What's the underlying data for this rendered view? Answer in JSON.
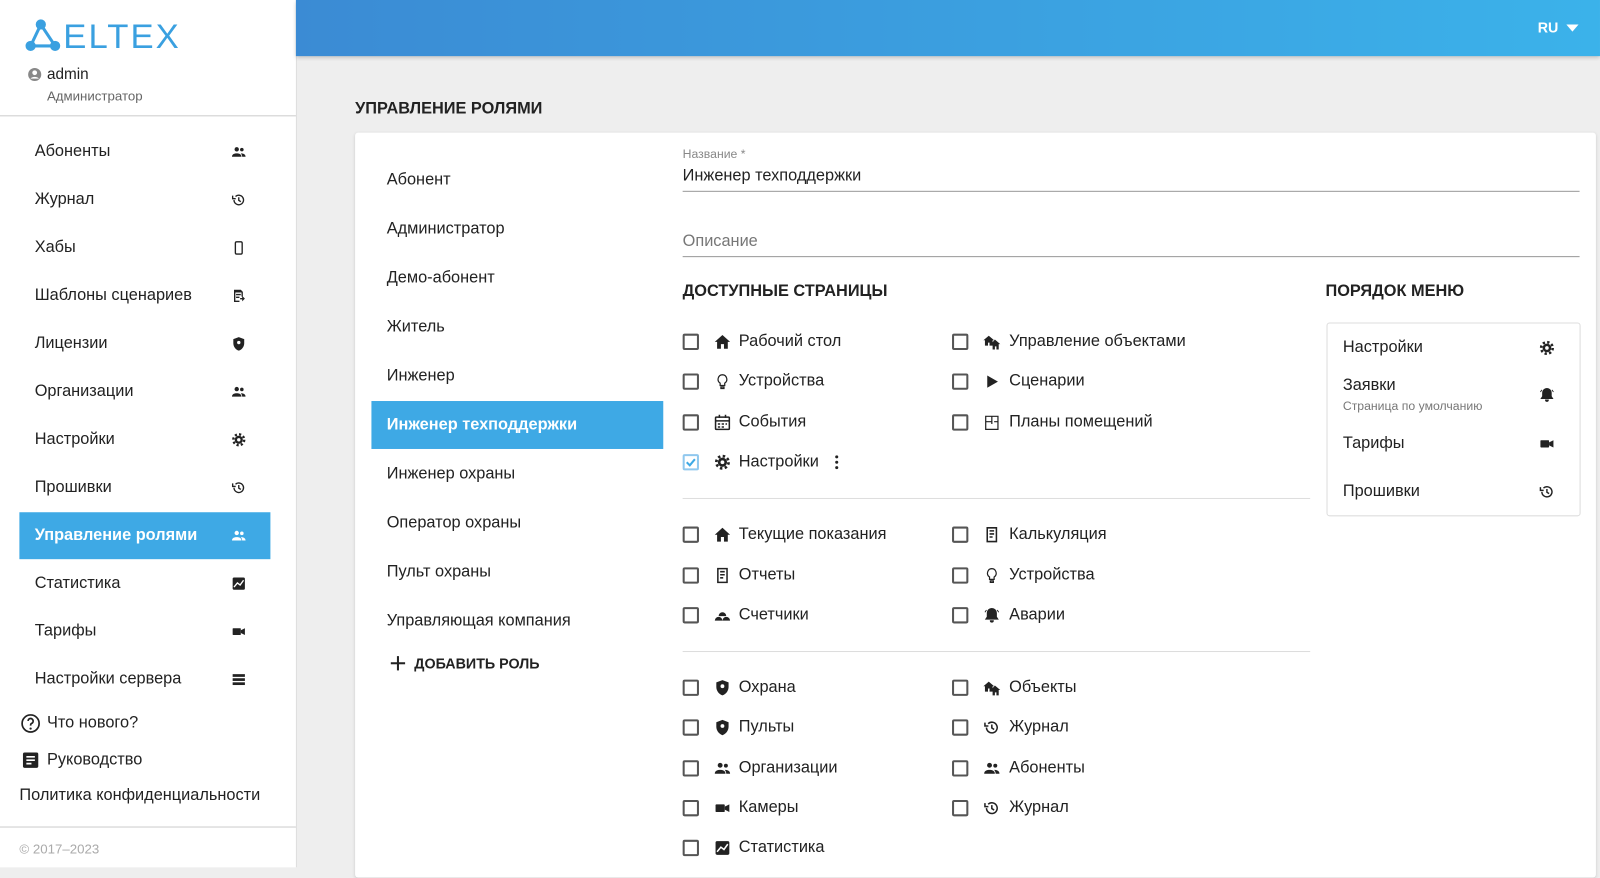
{
  "brand": "ELTEX",
  "user": {
    "name": "admin",
    "role": "Администратор"
  },
  "lang": "RU",
  "nav": {
    "active": 8,
    "items": [
      "Абоненты",
      "Журнал",
      "Хабы",
      "Шаблоны сценариев",
      "Лицензии",
      "Организации",
      "Настройки",
      "Прошивки",
      "Управление ролями",
      "Статистика",
      "Тарифы",
      "Настройки сервера"
    ]
  },
  "links": [
    "Что нового?",
    "Руководство",
    "Политика конфиденциальности"
  ],
  "copyright": "© 2017–2023",
  "page_title": "УПРАВЛЕНИЕ РОЛЯМИ",
  "roles": {
    "active": 5,
    "items": [
      "Абонент",
      "Администратор",
      "Демо-абонент",
      "Житель",
      "Инженер",
      "Инженер техподдержки",
      "Инженер охраны",
      "Оператор охраны",
      "Пульт охраны",
      "Управляющая компания"
    ],
    "add": "ДОБАВИТЬ РОЛЬ"
  },
  "form": {
    "name_label": "Название *",
    "name_value": "Инженер техподдержки",
    "description_placeholder": "Описание"
  },
  "pages": {
    "title": "ДОСТУПНЫЕ СТРАНИЦЫ",
    "groups": [
      {
        "left": [
          {
            "label": "Рабочий стол",
            "checked": false
          },
          {
            "label": "Устройства",
            "checked": false
          },
          {
            "label": "События",
            "checked": false
          },
          {
            "label": "Настройки",
            "checked": true
          }
        ],
        "right": [
          {
            "label": "Управление объектами",
            "checked": false
          },
          {
            "label": "Сценарии",
            "checked": false
          },
          {
            "label": "Планы помещений",
            "checked": false
          }
        ]
      },
      {
        "left": [
          {
            "label": "Текущие показания",
            "checked": false
          },
          {
            "label": "Отчеты",
            "checked": false
          },
          {
            "label": "Счетчики",
            "checked": false
          }
        ],
        "right": [
          {
            "label": "Калькуляция",
            "checked": false
          },
          {
            "label": "Устройства",
            "checked": false
          },
          {
            "label": "Аварии",
            "checked": false
          }
        ]
      },
      {
        "left": [
          {
            "label": "Охрана",
            "checked": false
          },
          {
            "label": "Пульты",
            "checked": false
          },
          {
            "label": "Организации",
            "checked": false
          },
          {
            "label": "Камеры",
            "checked": false
          },
          {
            "label": "Статистика",
            "checked": false
          }
        ],
        "right": [
          {
            "label": "Объекты",
            "checked": false
          },
          {
            "label": "Журнал",
            "checked": false
          },
          {
            "label": "Абоненты",
            "checked": false
          },
          {
            "label": "Журнал",
            "checked": false
          }
        ]
      }
    ]
  },
  "menu_order": {
    "title": "ПОРЯДОК МЕНЮ",
    "items": [
      {
        "label": "Настройки"
      },
      {
        "label": "Заявки",
        "note": "Страница по умолчанию"
      },
      {
        "label": "Тарифы"
      },
      {
        "label": "Прошивки"
      }
    ]
  }
}
